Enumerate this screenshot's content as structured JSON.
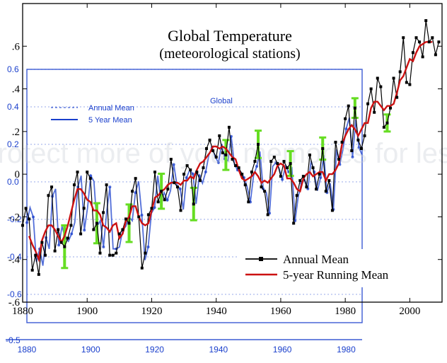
{
  "chart_data": {
    "type": "line",
    "title": "Global Temperature",
    "subtitle": "(meteorological stations)",
    "xlim": [
      1880,
      2010
    ],
    "ylim": [
      -0.6,
      0.8
    ],
    "x_ticks": [
      "1880",
      "1900",
      "1920",
      "1940",
      "1960",
      "1980",
      "2000"
    ],
    "y_ticks": [
      ".6",
      ".4",
      ".2",
      "0",
      "-.2",
      "-.4",
      "-.6"
    ],
    "y_tick_values": [
      0.6,
      0.4,
      0.2,
      0,
      -0.2,
      -0.4,
      -0.6
    ],
    "legend_position": "bottom-right",
    "colors": {
      "annual": "#000000",
      "running": "#cc1111",
      "uncertainty": "#66dd22",
      "overlay": "#1a3fcc"
    },
    "series": [
      {
        "name": "Annual Mean",
        "x": [
          1880,
          1881,
          1882,
          1883,
          1884,
          1885,
          1886,
          1887,
          1888,
          1889,
          1890,
          1891,
          1892,
          1893,
          1894,
          1895,
          1896,
          1897,
          1898,
          1899,
          1900,
          1901,
          1902,
          1903,
          1904,
          1905,
          1906,
          1907,
          1908,
          1909,
          1910,
          1911,
          1912,
          1913,
          1914,
          1915,
          1916,
          1917,
          1918,
          1919,
          1920,
          1921,
          1922,
          1923,
          1924,
          1925,
          1926,
          1927,
          1928,
          1929,
          1930,
          1931,
          1932,
          1933,
          1934,
          1935,
          1936,
          1937,
          1938,
          1939,
          1940,
          1941,
          1942,
          1943,
          1944,
          1945,
          1946,
          1947,
          1948,
          1949,
          1950,
          1951,
          1952,
          1953,
          1954,
          1955,
          1956,
          1957,
          1958,
          1959,
          1960,
          1961,
          1962,
          1963,
          1964,
          1965,
          1966,
          1967,
          1968,
          1969,
          1970,
          1971,
          1972,
          1973,
          1974,
          1975,
          1976,
          1977,
          1978,
          1979,
          1980,
          1981,
          1982,
          1983,
          1984,
          1985,
          1986,
          1987,
          1988,
          1989,
          1990,
          1991,
          1992,
          1993,
          1994,
          1995,
          1996,
          1997,
          1998,
          1999,
          2000,
          2001,
          2002,
          2003,
          2004,
          2005,
          2006,
          2007,
          2008,
          2009
        ],
        "values": [
          -0.24,
          -0.16,
          -0.21,
          -0.45,
          -0.38,
          -0.47,
          -0.32,
          -0.38,
          -0.1,
          -0.06,
          -0.36,
          -0.26,
          -0.32,
          -0.34,
          -0.3,
          -0.24,
          -0.05,
          0.01,
          -0.28,
          -0.16,
          0.01,
          -0.02,
          -0.26,
          -0.23,
          -0.37,
          -0.18,
          -0.05,
          -0.38,
          -0.38,
          -0.37,
          -0.28,
          -0.26,
          -0.21,
          -0.23,
          -0.08,
          -0.02,
          -0.2,
          -0.44,
          -0.37,
          -0.19,
          -0.16,
          0.01,
          -0.13,
          -0.08,
          -0.12,
          -0.07,
          0.07,
          -0.04,
          -0.06,
          -0.17,
          0.0,
          0.04,
          0.02,
          -0.14,
          0.01,
          -0.03,
          0.03,
          0.12,
          0.16,
          0.11,
          0.08,
          0.18,
          0.1,
          0.09,
          0.22,
          0.07,
          0.04,
          0.03,
          0.0,
          -0.05,
          -0.13,
          0.01,
          0.06,
          0.14,
          -0.06,
          -0.08,
          -0.19,
          0.06,
          0.08,
          0.05,
          -0.01,
          0.06,
          0.03,
          0.05,
          -0.23,
          -0.1,
          -0.03,
          -0.01,
          -0.06,
          0.09,
          0.03,
          -0.07,
          0.0,
          0.12,
          -0.08,
          -0.03,
          -0.17,
          0.15,
          0.07,
          0.15,
          0.26,
          0.32,
          0.11,
          0.31,
          0.16,
          0.12,
          0.18,
          0.33,
          0.4,
          0.29,
          0.45,
          0.41,
          0.22,
          0.24,
          0.31,
          0.45,
          0.36,
          0.48,
          0.64,
          0.43,
          0.42,
          0.57,
          0.64,
          0.62,
          0.55,
          0.72,
          0.62,
          0.64,
          0.56,
          0.62
        ]
      },
      {
        "name": "5-year Running Mean",
        "x": [
          1882,
          1883,
          1884,
          1885,
          1886,
          1887,
          1888,
          1889,
          1890,
          1891,
          1892,
          1893,
          1894,
          1895,
          1896,
          1897,
          1898,
          1899,
          1900,
          1901,
          1902,
          1903,
          1904,
          1905,
          1906,
          1907,
          1908,
          1909,
          1910,
          1911,
          1912,
          1913,
          1914,
          1915,
          1916,
          1917,
          1918,
          1919,
          1920,
          1921,
          1922,
          1923,
          1924,
          1925,
          1926,
          1927,
          1928,
          1929,
          1930,
          1931,
          1932,
          1933,
          1934,
          1935,
          1936,
          1937,
          1938,
          1939,
          1940,
          1941,
          1942,
          1943,
          1944,
          1945,
          1946,
          1947,
          1948,
          1949,
          1950,
          1951,
          1952,
          1953,
          1954,
          1955,
          1956,
          1957,
          1958,
          1959,
          1960,
          1961,
          1962,
          1963,
          1964,
          1965,
          1966,
          1967,
          1968,
          1969,
          1970,
          1971,
          1972,
          1973,
          1974,
          1975,
          1976,
          1977,
          1978,
          1979,
          1980,
          1981,
          1982,
          1983,
          1984,
          1985,
          1986,
          1987,
          1988,
          1989,
          1990,
          1991,
          1992,
          1993,
          1994,
          1995,
          1996,
          1997,
          1998,
          1999,
          2000,
          2001,
          2002,
          2003,
          2004,
          2005,
          2006,
          2007
        ],
        "values": [
          -0.29,
          -0.33,
          -0.36,
          -0.4,
          -0.31,
          -0.27,
          -0.24,
          -0.24,
          -0.26,
          -0.29,
          -0.32,
          -0.29,
          -0.24,
          -0.18,
          -0.12,
          -0.07,
          -0.07,
          -0.09,
          -0.12,
          -0.13,
          -0.17,
          -0.17,
          -0.19,
          -0.24,
          -0.25,
          -0.27,
          -0.24,
          -0.23,
          -0.3,
          -0.28,
          -0.22,
          -0.2,
          -0.15,
          -0.15,
          -0.2,
          -0.23,
          -0.24,
          -0.23,
          -0.17,
          -0.11,
          -0.1,
          -0.08,
          -0.07,
          -0.05,
          -0.04,
          -0.04,
          -0.04,
          -0.05,
          -0.03,
          -0.03,
          -0.01,
          -0.02,
          0.02,
          0.05,
          0.06,
          0.08,
          0.1,
          0.13,
          0.13,
          0.12,
          0.13,
          0.12,
          0.1,
          0.08,
          0.07,
          0.02,
          -0.02,
          -0.03,
          -0.02,
          -0.01,
          0.01,
          -0.01,
          -0.04,
          -0.03,
          -0.04,
          -0.02,
          0.0,
          0.04,
          0.05,
          0.04,
          -0.02,
          -0.02,
          -0.04,
          -0.07,
          -0.08,
          -0.02,
          0.0,
          0.01,
          -0.01,
          0.0,
          0.01,
          0.01,
          -0.03,
          0.0,
          0.0,
          0.02,
          0.05,
          0.14,
          0.18,
          0.21,
          0.23,
          0.21,
          0.18,
          0.21,
          0.24,
          0.24,
          0.31,
          0.34,
          0.34,
          0.32,
          0.3,
          0.32,
          0.32,
          0.33,
          0.38,
          0.44,
          0.46,
          0.5,
          0.54,
          0.53,
          0.57,
          0.6,
          0.61,
          0.62,
          0.62,
          0.62
        ]
      }
    ],
    "overlay": {
      "labels": [
        "Annual Mean",
        "5 Year Mean",
        "Global"
      ],
      "x_ticks": [
        "1880",
        "1900",
        "1920",
        "1940",
        "1960",
        "1980"
      ],
      "y_ticks": [
        "0.6",
        "0.4",
        "0.2",
        "0.0",
        "-0.2",
        "-0.4",
        "-0.6"
      ],
      "y_tick_values": [
        0.6,
        0.4,
        0.2,
        0.0,
        -0.2,
        -0.4,
        -0.6
      ],
      "extra_y_tick": "-0.5"
    },
    "watermark": "Protect more of your memories for less!"
  }
}
